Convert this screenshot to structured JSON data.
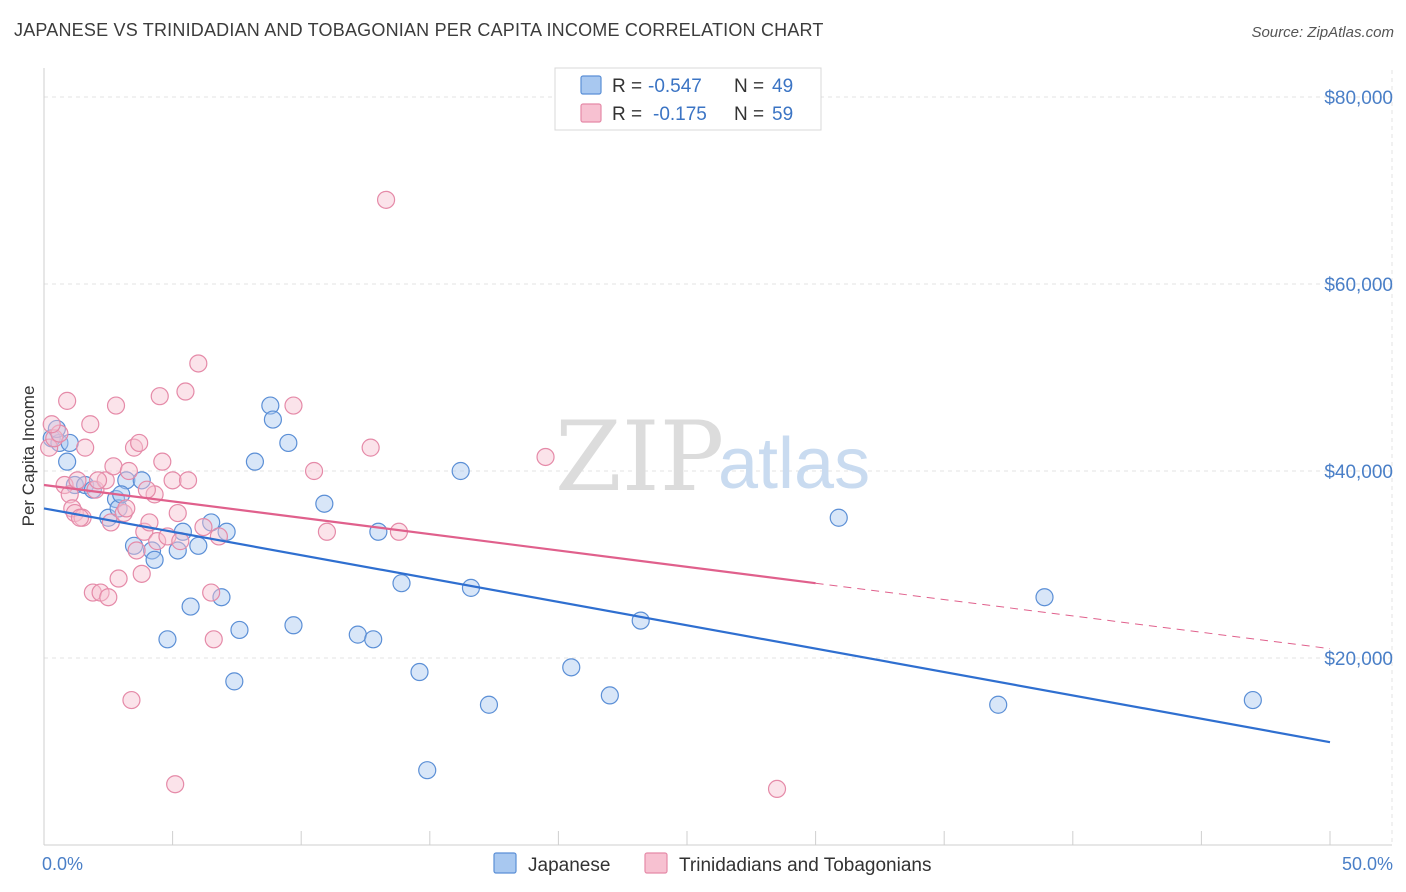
{
  "title": "JAPANESE VS TRINIDADIAN AND TOBAGONIAN PER CAPITA INCOME CORRELATION CHART",
  "source": "Source: ZipAtlas.com",
  "watermark": {
    "zip": "ZIP",
    "atlas": "atlas"
  },
  "colors": {
    "japanese_fill": "#a8c8f0",
    "japanese_stroke": "#5b8fd6",
    "japanese_line": "#2f6fd0",
    "trini_fill": "#f7c1d1",
    "trini_stroke": "#e58aa8",
    "trini_line": "#e0608c",
    "axis_text": "#4a7fc7",
    "grid": "#e3e3e3"
  },
  "legend": {
    "rows": [
      {
        "r_label": "R =",
        "r_value": "-0.547",
        "n_label": "N =",
        "n_value": "49"
      },
      {
        "r_label": "R =",
        "r_value": "-0.175",
        "n_label": "N =",
        "n_value": "59"
      }
    ]
  },
  "chart_data": {
    "type": "scatter",
    "ylabel": "Per Capita Income",
    "xlim": [
      0,
      50
    ],
    "ylim": [
      0,
      80000
    ],
    "x_tick_labels": [
      "0.0%",
      "50.0%"
    ],
    "y_ticks": [
      {
        "value": 80000,
        "label": "$80,000"
      },
      {
        "value": 60000,
        "label": "$60,000"
      },
      {
        "value": 40000,
        "label": "$40,000"
      },
      {
        "value": 20000,
        "label": "$20,000"
      }
    ],
    "grid": true,
    "legend_position": "top-center",
    "series": [
      {
        "name": "Japanese",
        "trend": {
          "x0": 0,
          "y0": 36000,
          "x1": 50,
          "y1": 11000,
          "dash_from": null
        },
        "points": [
          [
            0.3,
            43500
          ],
          [
            0.6,
            43000
          ],
          [
            0.9,
            41000
          ],
          [
            1.2,
            38500
          ],
          [
            1.6,
            38500
          ],
          [
            1.9,
            38000
          ],
          [
            2.5,
            35000
          ],
          [
            2.8,
            37000
          ],
          [
            2.9,
            36000
          ],
          [
            3.2,
            39000
          ],
          [
            3.8,
            39000
          ],
          [
            3.5,
            32000
          ],
          [
            4.2,
            31500
          ],
          [
            4.3,
            30500
          ],
          [
            4.8,
            22000
          ],
          [
            5.2,
            31500
          ],
          [
            5.4,
            33500
          ],
          [
            5.7,
            25500
          ],
          [
            6.0,
            32000
          ],
          [
            6.5,
            34500
          ],
          [
            6.9,
            26500
          ],
          [
            7.1,
            33500
          ],
          [
            7.4,
            17500
          ],
          [
            7.6,
            23000
          ],
          [
            8.2,
            41000
          ],
          [
            8.8,
            47000
          ],
          [
            8.9,
            45500
          ],
          [
            9.5,
            43000
          ],
          [
            9.7,
            23500
          ],
          [
            10.9,
            36500
          ],
          [
            12.2,
            22500
          ],
          [
            12.8,
            22000
          ],
          [
            13.0,
            33500
          ],
          [
            13.9,
            28000
          ],
          [
            14.6,
            18500
          ],
          [
            14.9,
            8000
          ],
          [
            16.2,
            40000
          ],
          [
            16.6,
            27500
          ],
          [
            17.3,
            15000
          ],
          [
            20.5,
            19000
          ],
          [
            22.0,
            16000
          ],
          [
            23.2,
            24000
          ],
          [
            30.9,
            35000
          ],
          [
            37.1,
            15000
          ],
          [
            38.9,
            26500
          ],
          [
            47.0,
            15500
          ],
          [
            0.5,
            44500
          ],
          [
            1.0,
            43000
          ],
          [
            3.0,
            37500
          ]
        ]
      },
      {
        "name": "Trinidadians and Tobagonians",
        "trend": {
          "x0": 0,
          "y0": 38500,
          "x1": 50,
          "y1": 21000,
          "dash_from": 30
        },
        "points": [
          [
            0.2,
            42500
          ],
          [
            0.4,
            43500
          ],
          [
            0.6,
            44000
          ],
          [
            0.8,
            38500
          ],
          [
            0.9,
            47500
          ],
          [
            1.0,
            37500
          ],
          [
            1.1,
            36000
          ],
          [
            1.2,
            35500
          ],
          [
            1.3,
            39000
          ],
          [
            1.5,
            35000
          ],
          [
            1.6,
            42500
          ],
          [
            1.8,
            45000
          ],
          [
            1.9,
            27000
          ],
          [
            2.0,
            38000
          ],
          [
            2.2,
            27000
          ],
          [
            2.4,
            39000
          ],
          [
            2.5,
            26500
          ],
          [
            2.6,
            34500
          ],
          [
            2.7,
            40500
          ],
          [
            2.8,
            47000
          ],
          [
            2.9,
            28500
          ],
          [
            3.1,
            35500
          ],
          [
            3.2,
            36000
          ],
          [
            3.3,
            40000
          ],
          [
            3.4,
            15500
          ],
          [
            3.5,
            42500
          ],
          [
            3.7,
            43000
          ],
          [
            3.8,
            29000
          ],
          [
            3.9,
            33500
          ],
          [
            4.1,
            34500
          ],
          [
            4.3,
            37500
          ],
          [
            4.4,
            32500
          ],
          [
            4.5,
            48000
          ],
          [
            4.6,
            41000
          ],
          [
            4.8,
            33000
          ],
          [
            5.0,
            39000
          ],
          [
            5.1,
            6500
          ],
          [
            5.2,
            35500
          ],
          [
            5.3,
            32500
          ],
          [
            5.5,
            48500
          ],
          [
            5.6,
            39000
          ],
          [
            6.0,
            51500
          ],
          [
            6.2,
            34000
          ],
          [
            6.5,
            27000
          ],
          [
            6.6,
            22000
          ],
          [
            6.8,
            33000
          ],
          [
            9.7,
            47000
          ],
          [
            10.5,
            40000
          ],
          [
            11.0,
            33500
          ],
          [
            12.7,
            42500
          ],
          [
            13.3,
            69000
          ],
          [
            13.8,
            33500
          ],
          [
            19.5,
            41500
          ],
          [
            28.5,
            6000
          ],
          [
            0.3,
            45000
          ],
          [
            1.4,
            35000
          ],
          [
            2.1,
            39000
          ],
          [
            3.6,
            31500
          ],
          [
            4.0,
            38000
          ]
        ]
      }
    ]
  }
}
